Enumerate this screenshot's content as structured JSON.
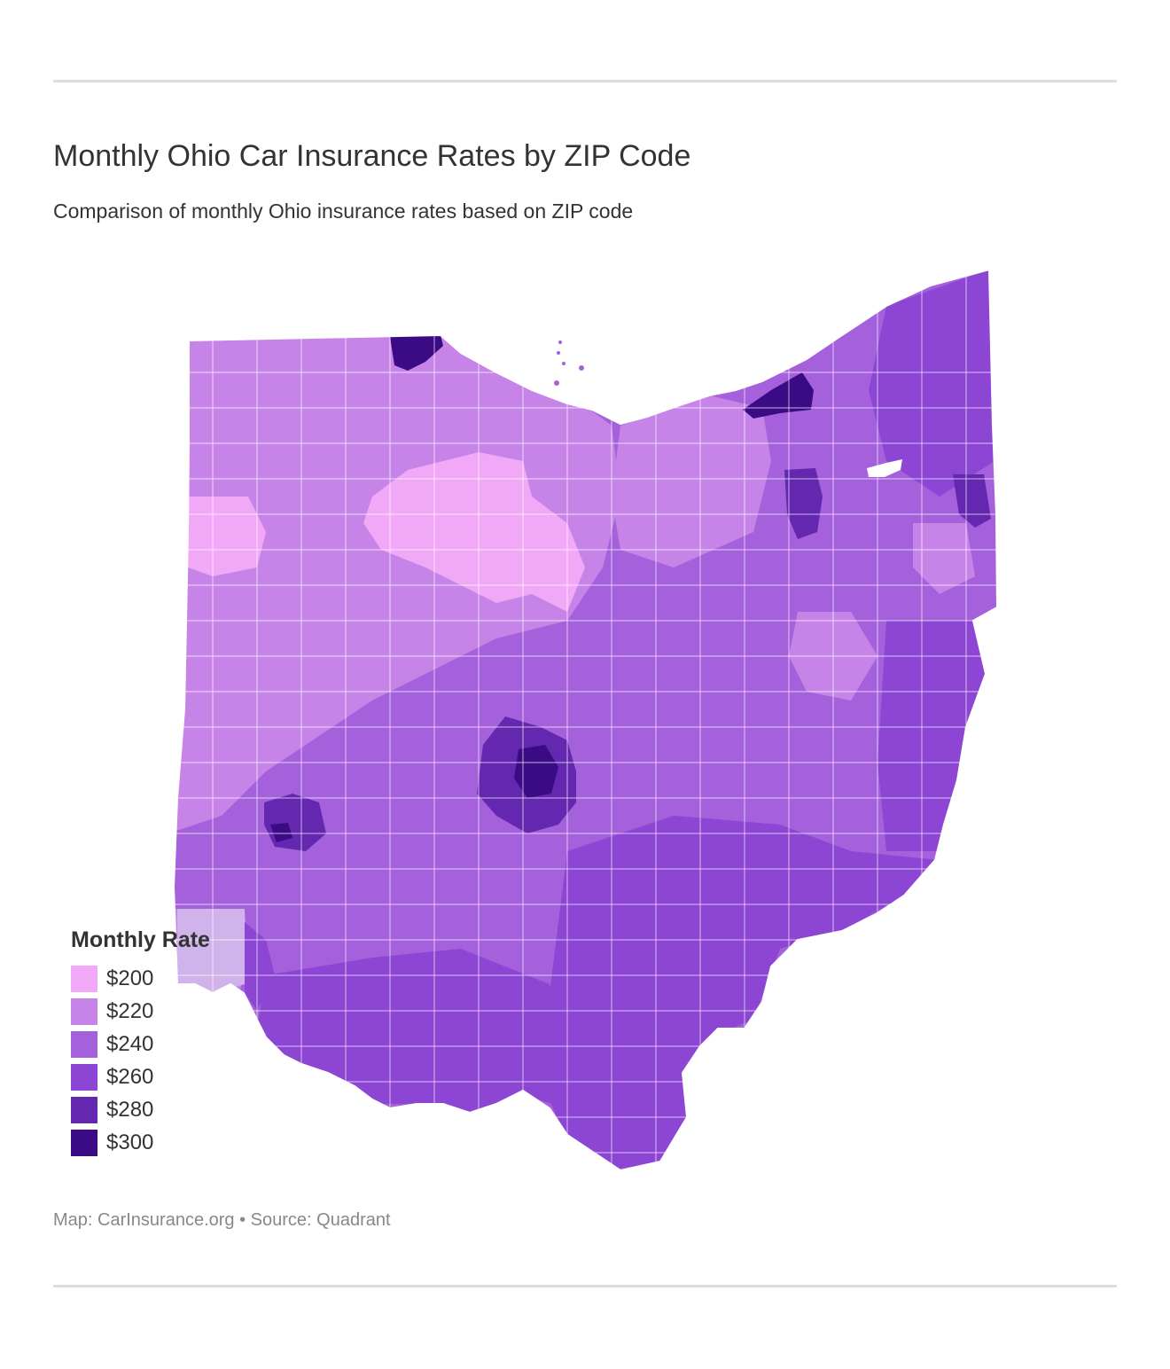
{
  "title": "Monthly Ohio Car Insurance Rates by ZIP Code",
  "subtitle": "Comparison of monthly Ohio insurance rates based on ZIP code",
  "source": "Map: CarInsurance.org • Source: Quadrant",
  "legend": {
    "title": "Monthly Rate",
    "items": [
      {
        "label": "$200",
        "color": "#f1a8f7"
      },
      {
        "label": "$220",
        "color": "#c784e8"
      },
      {
        "label": "$240",
        "color": "#a560dc"
      },
      {
        "label": "$260",
        "color": "#8d45d3"
      },
      {
        "label": "$280",
        "color": "#6427b0"
      },
      {
        "label": "$300",
        "color": "#3b0a85"
      }
    ]
  },
  "map": {
    "state": "Ohio",
    "region_rates": [
      {
        "region": "northwest",
        "rate_level": "$220"
      },
      {
        "region": "north-central",
        "rate_level": "$200"
      },
      {
        "region": "toledo",
        "rate_level": "$300"
      },
      {
        "region": "cleveland",
        "rate_level": "$300"
      },
      {
        "region": "northeast",
        "rate_level": "$260"
      },
      {
        "region": "akron",
        "rate_level": "$280"
      },
      {
        "region": "youngstown",
        "rate_level": "$280"
      },
      {
        "region": "west-central",
        "rate_level": "$220"
      },
      {
        "region": "central",
        "rate_level": "$240"
      },
      {
        "region": "columbus",
        "rate_level": "$280"
      },
      {
        "region": "dayton",
        "rate_level": "$280"
      },
      {
        "region": "east",
        "rate_level": "$260"
      },
      {
        "region": "southeast",
        "rate_level": "$260"
      },
      {
        "region": "southwest",
        "rate_level": "$240"
      },
      {
        "region": "cincinnati",
        "rate_level": "$220"
      }
    ]
  }
}
